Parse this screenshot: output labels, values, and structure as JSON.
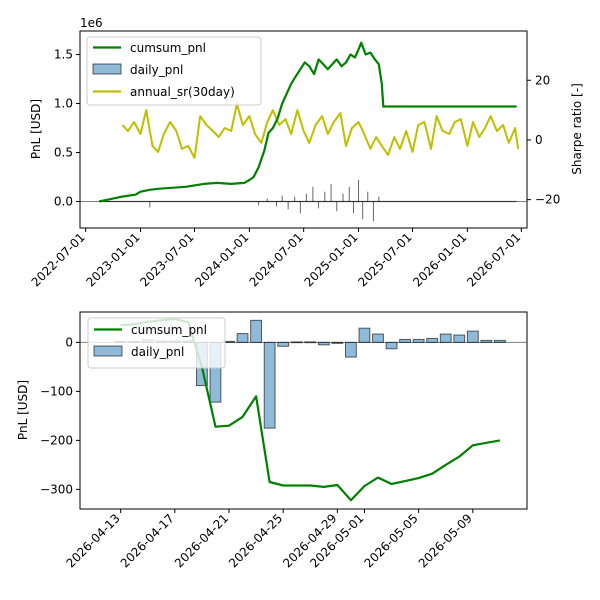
{
  "chart_data": [
    {
      "type": "line",
      "title": "",
      "offset_label": "1e6",
      "xlabel": "",
      "ylabel": "PnL [USD]",
      "ylabel_right": "Sharpe ratio [-]",
      "x_ticks": [
        "2022-07-01",
        "2023-01-01",
        "2023-07-01",
        "2024-01-01",
        "2024-07-01",
        "2025-01-01",
        "2025-07-01",
        "2026-01-01",
        "2026-07-01"
      ],
      "y_ticks": [
        "0.0",
        "0.5",
        "1.0",
        "1.5"
      ],
      "y_tick_values": [
        0,
        0.5,
        1.0,
        1.5
      ],
      "y2_ticks": [
        "−20",
        "0",
        "20"
      ],
      "y2_tick_values": [
        -20,
        0,
        20
      ],
      "xlim": [
        "2022-06-12",
        "2026-07-20"
      ],
      "ylim": [
        -0.27,
        1.74
      ],
      "y2lim": [
        -29.5,
        36.5
      ],
      "grid": false,
      "legend_position": "top-left",
      "legend": [
        "cumsum_pnl",
        "daily_pnl",
        "annual_sr(30day)"
      ],
      "colors": {
        "cumsum": "#008000",
        "daily": "#1f77b4",
        "sharpe": "#bfbf00",
        "baseline": "#808080"
      },
      "series": [
        {
          "name": "cumsum_pnl",
          "axis": "left",
          "x": [
            "2022-08-15",
            "2022-09-15",
            "2022-11-01",
            "2022-12-15",
            "2023-01-01",
            "2023-02-01",
            "2023-03-01",
            "2023-04-15",
            "2023-06-01",
            "2023-08-01",
            "2023-09-15",
            "2023-11-01",
            "2023-12-15",
            "2024-01-01",
            "2024-01-15",
            "2024-02-01",
            "2024-02-20",
            "2024-03-05",
            "2024-03-20",
            "2024-04-05",
            "2024-04-20",
            "2024-05-05",
            "2024-05-20",
            "2024-06-05",
            "2024-06-20",
            "2024-07-05",
            "2024-07-20",
            "2024-08-05",
            "2024-08-20",
            "2024-09-05",
            "2024-09-20",
            "2024-10-05",
            "2024-10-20",
            "2024-11-05",
            "2024-11-20",
            "2024-12-05",
            "2024-12-20",
            "2025-01-01",
            "2025-01-10",
            "2025-01-25",
            "2025-02-10",
            "2025-02-25",
            "2025-03-10",
            "2025-03-20",
            "2025-03-25",
            "2025-04-15",
            "2025-06-01",
            "2025-09-01",
            "2025-12-01",
            "2026-03-01",
            "2026-06-15"
          ],
          "y": [
            0.0,
            0.02,
            0.05,
            0.07,
            0.1,
            0.12,
            0.13,
            0.14,
            0.15,
            0.18,
            0.19,
            0.18,
            0.19,
            0.22,
            0.25,
            0.35,
            0.52,
            0.7,
            0.75,
            0.85,
            1.0,
            1.1,
            1.2,
            1.28,
            1.35,
            1.42,
            1.38,
            1.3,
            1.45,
            1.4,
            1.35,
            1.4,
            1.45,
            1.38,
            1.42,
            1.5,
            1.47,
            1.55,
            1.62,
            1.5,
            1.52,
            1.45,
            1.4,
            1.2,
            0.97,
            0.97,
            0.97,
            0.97,
            0.97,
            0.97,
            0.97
          ]
        },
        {
          "name": "daily_pnl",
          "axis": "left",
          "x": [
            "2023-02-01",
            "2024-02-01",
            "2024-03-01",
            "2024-04-01",
            "2024-04-20",
            "2024-05-10",
            "2024-06-01",
            "2024-06-20",
            "2024-07-10",
            "2024-08-01",
            "2024-08-20",
            "2024-09-10",
            "2024-10-01",
            "2024-10-20",
            "2024-11-10",
            "2024-12-01",
            "2024-12-15",
            "2025-01-01",
            "2025-01-15",
            "2025-02-01",
            "2025-02-20",
            "2025-03-10"
          ],
          "y": [
            -0.06,
            -0.04,
            0.03,
            -0.05,
            0.06,
            -0.08,
            0.05,
            -0.12,
            0.08,
            0.15,
            -0.07,
            0.1,
            0.18,
            -0.1,
            0.08,
            0.15,
            -0.12,
            0.22,
            -0.18,
            0.1,
            -0.2,
            0.05
          ]
        },
        {
          "name": "annual_sr(30day)",
          "axis": "right",
          "x": [
            "2022-11-01",
            "2022-11-20",
            "2022-12-10",
            "2023-01-01",
            "2023-01-20",
            "2023-02-10",
            "2023-03-01",
            "2023-03-20",
            "2023-04-10",
            "2023-05-01",
            "2023-05-20",
            "2023-06-10",
            "2023-07-01",
            "2023-07-20",
            "2023-08-10",
            "2023-09-01",
            "2023-09-20",
            "2023-10-10",
            "2023-11-01",
            "2023-11-20",
            "2023-12-10",
            "2024-01-01",
            "2024-01-20",
            "2024-02-10",
            "2024-03-01",
            "2024-03-20",
            "2024-04-10",
            "2024-05-01",
            "2024-05-20",
            "2024-06-10",
            "2024-07-01",
            "2024-07-20",
            "2024-08-10",
            "2024-09-01",
            "2024-09-20",
            "2024-10-10",
            "2024-11-01",
            "2024-11-20",
            "2024-12-10",
            "2025-01-01",
            "2025-01-20",
            "2025-02-10",
            "2025-03-01",
            "2025-03-20",
            "2025-04-10",
            "2025-05-01",
            "2025-05-20",
            "2025-06-10",
            "2025-07-01",
            "2025-07-20",
            "2025-08-10",
            "2025-09-01",
            "2025-09-20",
            "2025-10-10",
            "2025-11-01",
            "2025-11-20",
            "2025-12-10",
            "2026-01-01",
            "2026-01-20",
            "2026-02-10",
            "2026-03-01",
            "2026-03-20",
            "2026-04-10",
            "2026-05-01",
            "2026-05-20",
            "2026-06-10",
            "2026-06-20"
          ],
          "y": [
            5,
            3,
            6,
            2,
            10,
            -2,
            -4,
            2,
            6,
            3,
            -3,
            -2,
            -6,
            8,
            5,
            3,
            1,
            4,
            3,
            12,
            5,
            8,
            2,
            -1,
            6,
            10,
            5,
            7,
            2,
            10,
            3,
            -1,
            5,
            8,
            2,
            6,
            9,
            -2,
            4,
            6,
            2,
            -3,
            1,
            -2,
            -5,
            1,
            -3,
            3,
            -4,
            5,
            6,
            -3,
            8,
            3,
            2,
            6,
            7,
            -2,
            6,
            1,
            4,
            8,
            3,
            5,
            -1,
            4,
            -3
          ]
        }
      ]
    },
    {
      "type": "bar",
      "title": "",
      "xlabel": "",
      "ylabel": "PnL [USD]",
      "x_ticks": [
        "2026-04-13",
        "2026-04-17",
        "2026-04-21",
        "2026-04-25",
        "2026-04-29",
        "2026-05-01",
        "2026-05-05",
        "2026-05-09"
      ],
      "y_ticks": [
        "−300",
        "−200",
        "−100",
        "0"
      ],
      "y_tick_values": [
        -300,
        -200,
        -100,
        0
      ],
      "xlim": [
        "2026-04-10",
        "2026-05-13"
      ],
      "ylim": [
        -340,
        62
      ],
      "grid": false,
      "legend_position": "top-left",
      "legend": [
        "cumsum_pnl",
        "daily_pnl"
      ],
      "colors": {
        "cumsum": "#008000",
        "daily": "#1f77b4",
        "baseline": "#808080"
      },
      "series": [
        {
          "name": "daily_pnl",
          "x": [
            "2026-04-13",
            "2026-04-14",
            "2026-04-15",
            "2026-04-16",
            "2026-04-17",
            "2026-04-18",
            "2026-04-19",
            "2026-04-20",
            "2026-04-21",
            "2026-04-22",
            "2026-04-23",
            "2026-04-24",
            "2026-04-25",
            "2026-04-26",
            "2026-04-27",
            "2026-04-28",
            "2026-04-29",
            "2026-04-30",
            "2026-05-01",
            "2026-05-02",
            "2026-05-03",
            "2026-05-04",
            "2026-05-05",
            "2026-05-06",
            "2026-05-07",
            "2026-05-08",
            "2026-05-09",
            "2026-05-10",
            "2026-05-11"
          ],
          "y": [
            2,
            2,
            5,
            3,
            3,
            3,
            -88,
            -122,
            2,
            18,
            45,
            -175,
            -8,
            1,
            1,
            -5,
            -2,
            -30,
            29,
            17,
            -13,
            6,
            6,
            8,
            17,
            15,
            23,
            4,
            4
          ]
        },
        {
          "name": "cumsum_pnl",
          "x": [
            "2026-04-13",
            "2026-04-14",
            "2026-04-15",
            "2026-04-16",
            "2026-04-17",
            "2026-04-18",
            "2026-04-19",
            "2026-04-20",
            "2026-04-21",
            "2026-04-22",
            "2026-04-23",
            "2026-04-24",
            "2026-04-25",
            "2026-04-26",
            "2026-04-27",
            "2026-04-28",
            "2026-04-29",
            "2026-04-30",
            "2026-05-01",
            "2026-05-02",
            "2026-05-03",
            "2026-05-04",
            "2026-05-05",
            "2026-05-06",
            "2026-05-07",
            "2026-05-08",
            "2026-05-09",
            "2026-05-10",
            "2026-05-11"
          ],
          "y": [
            35,
            37,
            42,
            45,
            48,
            41,
            -50,
            -172,
            -170,
            -152,
            -110,
            -285,
            -292,
            -292,
            -292,
            -295,
            -291,
            -322,
            -293,
            -276,
            -289,
            -283,
            -277,
            -268,
            -250,
            -233,
            -210,
            -205,
            -200
          ]
        }
      ]
    }
  ]
}
